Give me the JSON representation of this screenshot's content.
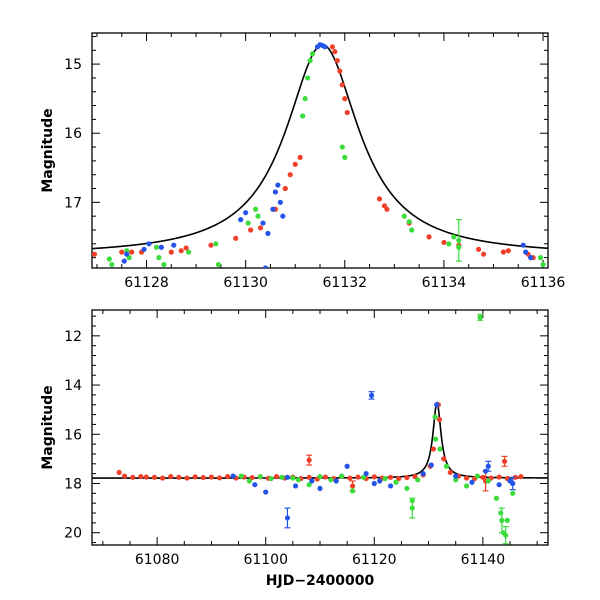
{
  "colors": {
    "red": "#f0402a",
    "green": "#3cdc3c",
    "blue": "#2454e8",
    "model": "#000000"
  },
  "chart_data": [
    {
      "type": "scatter",
      "title": "",
      "xlabel": "",
      "ylabel": "Magnitude",
      "xlim": [
        61126.9,
        61136.1
      ],
      "ylim": [
        17.95,
        14.55
      ],
      "xticks": [
        61128,
        61130,
        61132,
        61134,
        61136
      ],
      "yticks": [
        15,
        16,
        17
      ],
      "model": {
        "t0": 61131.55,
        "peak": 14.72,
        "base": 17.78,
        "width": 0.9
      },
      "series": [
        {
          "name": "red",
          "color": "red",
          "points": [
            [
              61126.95,
              17.75
            ],
            [
              61127.5,
              17.72
            ],
            [
              61127.7,
              17.72
            ],
            [
              61127.9,
              17.72
            ],
            [
              61128.5,
              17.72
            ],
            [
              61128.7,
              17.7
            ],
            [
              61128.8,
              17.66
            ],
            [
              61129.3,
              17.62
            ],
            [
              61129.8,
              17.52
            ],
            [
              61130.1,
              17.4
            ],
            [
              61130.3,
              17.37
            ],
            [
              61130.6,
              17.1
            ],
            [
              61130.8,
              16.8
            ],
            [
              61130.9,
              16.6
            ],
            [
              61131.0,
              16.45
            ],
            [
              61131.1,
              16.35
            ],
            [
              61131.75,
              14.75
            ],
            [
              61131.8,
              14.82
            ],
            [
              61131.85,
              14.95
            ],
            [
              61131.9,
              15.1
            ],
            [
              61131.95,
              15.3
            ],
            [
              61132.0,
              15.5
            ],
            [
              61132.05,
              15.7
            ],
            [
              61132.7,
              16.95
            ],
            [
              61132.8,
              17.05
            ],
            [
              61132.85,
              17.1
            ],
            [
              61133.3,
              17.3
            ],
            [
              61133.7,
              17.5
            ],
            [
              61134.0,
              17.58
            ],
            [
              61134.3,
              17.62
            ],
            [
              61134.7,
              17.68
            ],
            [
              61134.8,
              17.75
            ],
            [
              61135.2,
              17.72
            ],
            [
              61135.3,
              17.7
            ],
            [
              61135.7,
              17.75
            ],
            [
              61135.8,
              17.8
            ]
          ]
        },
        {
          "name": "green",
          "color": "green",
          "points": [
            [
              61127.25,
              17.82
            ],
            [
              61127.3,
              17.9
            ],
            [
              61127.6,
              17.7
            ],
            [
              61127.65,
              17.8
            ],
            [
              61128.2,
              17.65
            ],
            [
              61128.25,
              17.8
            ],
            [
              61128.35,
              17.9
            ],
            [
              61128.85,
              17.72
            ],
            [
              61129.4,
              17.6
            ],
            [
              61129.45,
              17.9
            ],
            [
              61130.05,
              17.3
            ],
            [
              61130.2,
              17.1
            ],
            [
              61130.25,
              17.2
            ],
            [
              61131.15,
              15.75
            ],
            [
              61131.2,
              15.5
            ],
            [
              61131.25,
              15.2
            ],
            [
              61131.3,
              14.95
            ],
            [
              61131.35,
              14.85
            ],
            [
              61131.95,
              16.2
            ],
            [
              61132.0,
              16.35
            ],
            [
              61133.2,
              17.2
            ],
            [
              61133.3,
              17.28
            ],
            [
              61133.35,
              17.4
            ],
            [
              61134.1,
              17.6
            ],
            [
              61134.2,
              17.5
            ],
            [
              61134.3,
              17.65
            ],
            [
              61135.95,
              17.8
            ],
            [
              61136.0,
              17.9
            ]
          ],
          "errorbars": [
            [
              61134.3,
              17.55,
              0.3
            ]
          ]
        },
        {
          "name": "blue",
          "color": "blue",
          "points": [
            [
              61127.55,
              17.85
            ],
            [
              61127.6,
              17.75
            ],
            [
              61127.95,
              17.68
            ],
            [
              61128.05,
              17.6
            ],
            [
              61128.3,
              17.65
            ],
            [
              61128.55,
              17.62
            ],
            [
              61129.9,
              17.25
            ],
            [
              61130.0,
              17.15
            ],
            [
              61130.35,
              17.3
            ],
            [
              61130.45,
              17.45
            ],
            [
              61130.55,
              17.1
            ],
            [
              61130.6,
              16.85
            ],
            [
              61130.65,
              16.75
            ],
            [
              61130.7,
              17.0
            ],
            [
              61130.75,
              17.2
            ],
            [
              61131.45,
              14.75
            ],
            [
              61131.5,
              14.72
            ],
            [
              61131.55,
              14.73
            ],
            [
              61131.6,
              14.75
            ],
            [
              61135.6,
              17.62
            ],
            [
              61135.65,
              17.72
            ],
            [
              61135.75,
              17.8
            ],
            [
              61130.4,
              17.95
            ]
          ]
        }
      ]
    },
    {
      "type": "scatter",
      "title": "",
      "xlabel": "HJD−2400000",
      "ylabel": "Magnitude",
      "xlim": [
        61068,
        61152
      ],
      "ylim": [
        20.5,
        10.95
      ],
      "xticks": [
        61080,
        61100,
        61120,
        61140
      ],
      "yticks": [
        12,
        14,
        16,
        18,
        20
      ],
      "model": {
        "t0": 61131.55,
        "peak": 14.72,
        "base": 17.78,
        "width": 0.9
      },
      "series": [
        {
          "name": "red",
          "color": "red",
          "points": [
            [
              61073,
              17.55
            ],
            [
              61074,
              17.7
            ],
            [
              61075.5,
              17.75
            ],
            [
              61077,
              17.72
            ],
            [
              61078,
              17.74
            ],
            [
              61079.5,
              17.75
            ],
            [
              61081,
              17.78
            ],
            [
              61082.5,
              17.72
            ],
            [
              61084,
              17.75
            ],
            [
              61085.5,
              17.78
            ],
            [
              61087,
              17.73
            ],
            [
              61088.5,
              17.76
            ],
            [
              61090,
              17.74
            ],
            [
              61091.5,
              17.77
            ],
            [
              61093,
              17.72
            ],
            [
              61094.5,
              17.78
            ],
            [
              61096,
              17.74
            ],
            [
              61097.5,
              17.76
            ],
            [
              61099,
              17.73
            ],
            [
              61100.5,
              17.79
            ],
            [
              61102,
              17.72
            ],
            [
              61103.5,
              17.78
            ],
            [
              61105,
              17.74
            ],
            [
              61106.5,
              17.8
            ],
            [
              61108,
              17.75
            ],
            [
              61109.5,
              17.82
            ],
            [
              61111,
              17.74
            ],
            [
              61112.5,
              17.8
            ],
            [
              61114,
              17.7
            ],
            [
              61115.5,
              17.78
            ],
            [
              61117,
              17.74
            ],
            [
              61118.5,
              17.8
            ],
            [
              61120,
              17.73
            ],
            [
              61121.5,
              17.78
            ],
            [
              61123,
              17.75
            ],
            [
              61124.5,
              17.8
            ],
            [
              61126,
              17.76
            ],
            [
              61127.5,
              17.72
            ],
            [
              61129,
              17.65
            ],
            [
              61130.3,
              17.3
            ],
            [
              61130.9,
              16.6
            ],
            [
              61131.8,
              14.8
            ],
            [
              61132.0,
              15.4
            ],
            [
              61132.8,
              17.0
            ],
            [
              61134,
              17.55
            ],
            [
              61135.5,
              17.7
            ],
            [
              61137,
              17.78
            ],
            [
              61138.5,
              17.8
            ],
            [
              61140,
              17.75
            ],
            [
              61141.5,
              17.78
            ],
            [
              61143,
              17.74
            ],
            [
              61144.5,
              17.8
            ],
            [
              61146,
              17.75
            ],
            [
              61147,
              17.72
            ]
          ],
          "errorbars": [
            [
              61108,
              17.05,
              0.2
            ],
            [
              61116,
              18.1,
              0.2
            ],
            [
              61144,
              17.1,
              0.2
            ],
            [
              61140.5,
              17.9,
              0.4
            ]
          ]
        },
        {
          "name": "green",
          "color": "green",
          "points": [
            [
              61095.5,
              17.7
            ],
            [
              61097,
              17.9
            ],
            [
              61099,
              17.72
            ],
            [
              61101,
              17.8
            ],
            [
              61103,
              17.75
            ],
            [
              61105,
              17.78
            ],
            [
              61106,
              17.85
            ],
            [
              61108,
              18.05
            ],
            [
              61110,
              17.72
            ],
            [
              61112,
              17.85
            ],
            [
              61114,
              17.7
            ],
            [
              61116,
              18.3
            ],
            [
              61118,
              17.75
            ],
            [
              61122,
              17.8
            ],
            [
              61124,
              17.95
            ],
            [
              61126,
              18.2
            ],
            [
              61127,
              18.7
            ],
            [
              61128,
              17.85
            ],
            [
              61131.2,
              15.3
            ],
            [
              61131.3,
              16.2
            ],
            [
              61132.1,
              16.6
            ],
            [
              61133.3,
              17.3
            ],
            [
              61135,
              17.85
            ],
            [
              61137,
              18.1
            ],
            [
              61139,
              17.7
            ],
            [
              61141,
              17.9
            ],
            [
              61142.5,
              18.6
            ],
            [
              61143.3,
              19.2
            ],
            [
              61143.8,
              20.0
            ],
            [
              61144.5,
              19.5
            ],
            [
              61145.5,
              18.4
            ]
          ],
          "errorbars": [
            [
              61139.5,
              11.25,
              0.12
            ],
            [
              61127,
              19.0,
              0.4
            ],
            [
              61143.5,
              19.5,
              0.5
            ],
            [
              61144.2,
              20.1,
              0.35
            ]
          ]
        },
        {
          "name": "blue",
          "color": "blue",
          "points": [
            [
              61094,
              17.7
            ],
            [
              61098,
              18.05
            ],
            [
              61100,
              18.35
            ],
            [
              61104,
              17.75
            ],
            [
              61105.5,
              18.1
            ],
            [
              61108.5,
              17.9
            ],
            [
              61110,
              18.2
            ],
            [
              61113,
              17.9
            ],
            [
              61115,
              17.3
            ],
            [
              61118.5,
              17.6
            ],
            [
              61120,
              18.0
            ],
            [
              61121,
              17.9
            ],
            [
              61123,
              18.1
            ],
            [
              61129,
              17.6
            ],
            [
              61130.5,
              17.25
            ],
            [
              61131.5,
              14.8
            ],
            [
              61135,
              17.7
            ],
            [
              61138,
              17.95
            ],
            [
              61140.5,
              17.5
            ],
            [
              61143,
              18.05
            ],
            [
              61145,
              17.9
            ]
          ],
          "errorbars": [
            [
              61104,
              19.4,
              0.4
            ],
            [
              61119.5,
              14.42,
              0.15
            ],
            [
              61141,
              17.3,
              0.2
            ],
            [
              61145.5,
              18.0,
              0.25
            ]
          ]
        }
      ]
    }
  ]
}
